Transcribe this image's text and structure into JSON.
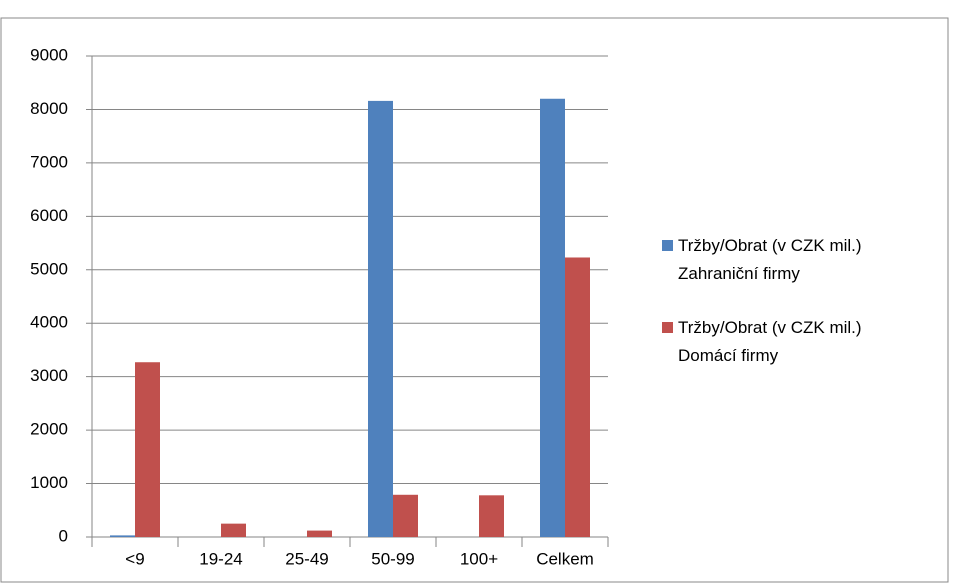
{
  "chart_data": {
    "type": "bar",
    "categories": [
      "<9",
      "19-24",
      "25-49",
      "50-99",
      "100+",
      "Celkem"
    ],
    "series": [
      {
        "name": "Tržby/Obrat (v CZK mil.) Zahraniční firmy",
        "color": "#4f81bd",
        "values": [
          30,
          0,
          0,
          8160,
          0,
          8200
        ]
      },
      {
        "name": "Tržby/Obrat (v CZK mil.) Domácí firmy",
        "color": "#c0504d",
        "values": [
          3270,
          250,
          120,
          790,
          780,
          5230
        ]
      }
    ],
    "ylim": [
      0,
      9000
    ],
    "yticks": [
      0,
      1000,
      2000,
      3000,
      4000,
      5000,
      6000,
      7000,
      8000,
      9000
    ],
    "grid": true,
    "legend": "right"
  }
}
